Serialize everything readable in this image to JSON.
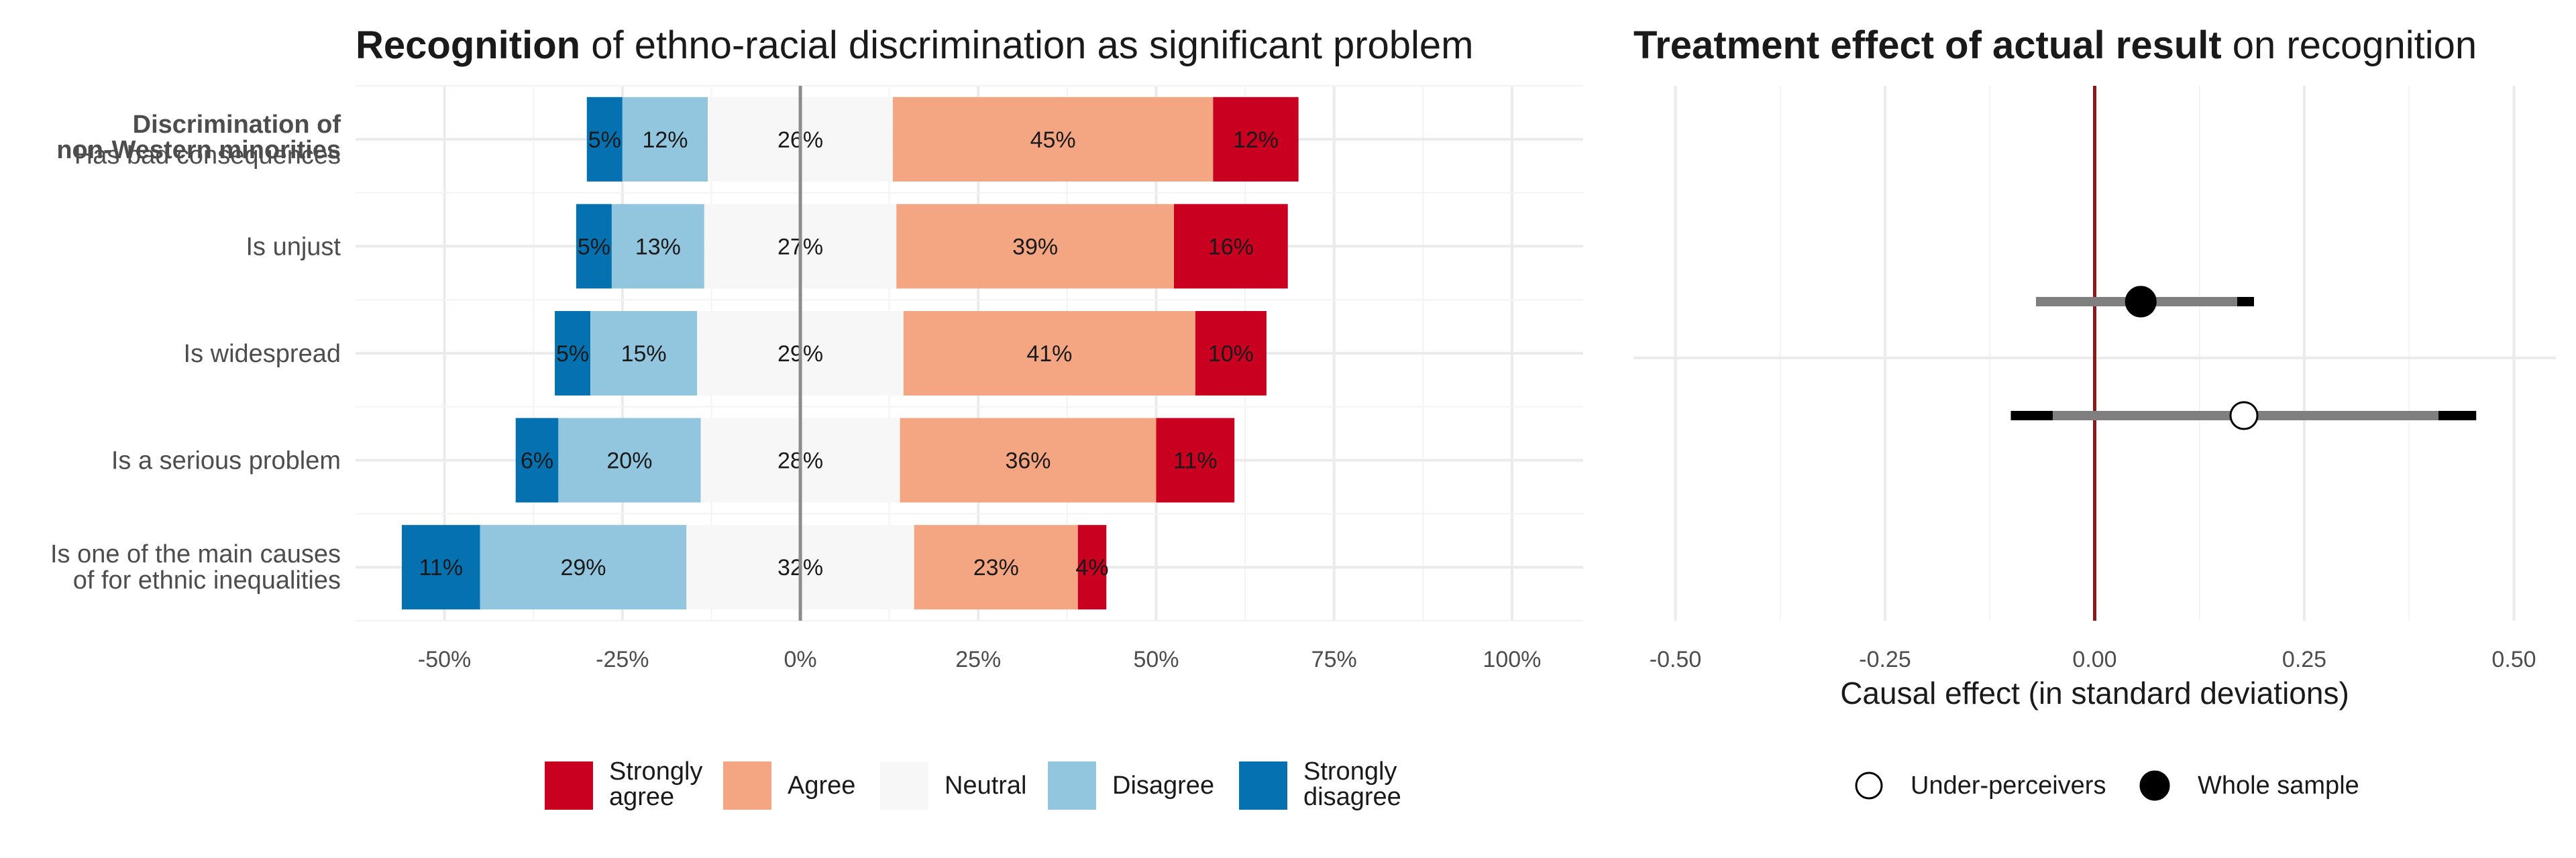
{
  "chart_data": [
    {
      "type": "bar",
      "subtype": "diverging-stacked",
      "title_bold": "Recognition",
      "title_rest": " of ethno-racial discrimination as significant problem",
      "group_label_lines": [
        "Discrimination of",
        "non-Western minorities"
      ],
      "categories": [
        [
          "Has bad consequences"
        ],
        [
          "Is unjust"
        ],
        [
          "Is widespread"
        ],
        [
          "Is a serious problem"
        ],
        [
          "Is one of the main causes",
          "of for ethnic inequalities"
        ]
      ],
      "series": [
        {
          "name": "Strongly disagree",
          "color": "#0571b0",
          "values": [
            5,
            5,
            5,
            6,
            11
          ]
        },
        {
          "name": "Disagree",
          "color": "#92c5de",
          "values": [
            12,
            13,
            15,
            20,
            29
          ]
        },
        {
          "name": "Neutral",
          "color": "#f7f7f7",
          "values": [
            26,
            27,
            29,
            28,
            32
          ]
        },
        {
          "name": "Agree",
          "color": "#f4a582",
          "values": [
            45,
            39,
            41,
            36,
            23
          ]
        },
        {
          "name": "Strongly agree",
          "color": "#ca0020",
          "values": [
            12,
            16,
            10,
            11,
            4
          ]
        }
      ],
      "xlim": [
        -0.625,
        1.1
      ],
      "xticks": [
        -0.5,
        -0.25,
        0,
        0.25,
        0.5,
        0.75,
        1.0
      ],
      "xtick_labels": [
        "-50%",
        "-25%",
        "0%",
        "25%",
        "50%",
        "75%",
        "100%"
      ],
      "legend": [
        {
          "label_lines": [
            "Strongly",
            "agree"
          ],
          "color": "#ca0020"
        },
        {
          "label_lines": [
            "Agree"
          ],
          "color": "#f4a582"
        },
        {
          "label_lines": [
            "Neutral"
          ],
          "color": "#f7f7f7"
        },
        {
          "label_lines": [
            "Disagree"
          ],
          "color": "#92c5de"
        },
        {
          "label_lines": [
            "Strongly",
            "disagree"
          ],
          "color": "#0571b0"
        }
      ],
      "legend_position": "bottom",
      "grid": true
    },
    {
      "type": "scatter",
      "subtype": "coefficient-plot",
      "title_bold": "Treatment effect of actual result",
      "title_rest": " on recognition",
      "xlabel": "Causal effect (in standard deviations)",
      "xlim": [
        -0.55,
        0.55
      ],
      "xticks": [
        -0.5,
        -0.25,
        0,
        0.25,
        0.5
      ],
      "xtick_labels": [
        "-0.50",
        "-0.25",
        "0.00",
        "0.25",
        "0.50"
      ],
      "reference_line": {
        "x": 0,
        "color": "#8b1a1a"
      },
      "points": [
        {
          "series": "Whole sample",
          "estimate": 0.055,
          "ci_inner": [
            -0.07,
            0.17
          ],
          "ci_outer": [
            -0.07,
            0.19
          ],
          "filled": true
        },
        {
          "series": "Under-perceivers",
          "estimate": 0.178,
          "ci_inner": [
            -0.05,
            0.41
          ],
          "ci_outer": [
            -0.1,
            0.455
          ],
          "filled": false
        }
      ],
      "legend": [
        {
          "label": "Under-perceivers",
          "filled": false
        },
        {
          "label": "Whole sample",
          "filled": true
        }
      ],
      "legend_position": "bottom",
      "grid": true
    }
  ]
}
